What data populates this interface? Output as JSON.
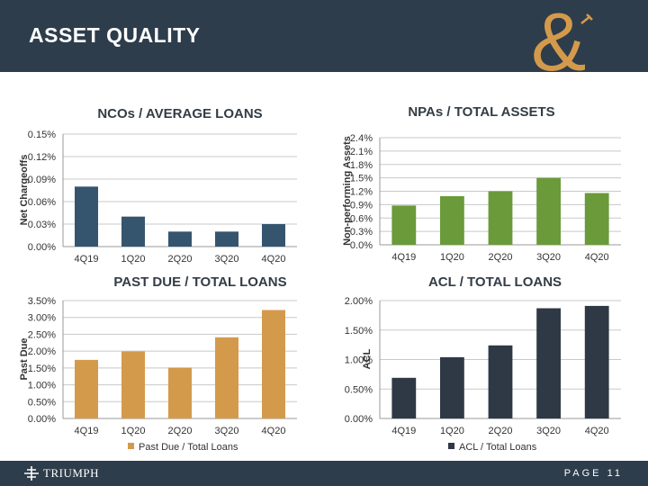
{
  "header": {
    "title": "ASSET QUALITY"
  },
  "footer": {
    "brand": "TRIUMPH",
    "page": "PAGE 11"
  },
  "colors": {
    "header_bg": "#2e3d4b",
    "accent_gold": "#d49a4b",
    "blue": "#35556f",
    "green": "#6a9a3a",
    "gold": "#d49a4b",
    "dark": "#2e3945"
  },
  "chart_data": [
    {
      "type": "bar",
      "title": "NCOs / AVERAGE LOANS",
      "ylabel": "Net Chargeoffs",
      "categories": [
        "4Q19",
        "1Q20",
        "2Q20",
        "3Q20",
        "4Q20"
      ],
      "values": [
        0.08,
        0.04,
        0.02,
        0.02,
        0.03
      ],
      "ylim": [
        0,
        0.15
      ],
      "yticks": [
        "0.00%",
        "0.03%",
        "0.06%",
        "0.09%",
        "0.12%",
        "0.15%"
      ],
      "unit": "%",
      "color": "#35556f",
      "grid": true
    },
    {
      "type": "bar",
      "title": "NPAs / TOTAL ASSETS",
      "ylabel": "Non-performing Assets",
      "categories": [
        "4Q19",
        "1Q20",
        "2Q20",
        "3Q20",
        "4Q20"
      ],
      "values": [
        0.88,
        1.09,
        1.2,
        1.5,
        1.16
      ],
      "ylim": [
        0,
        2.4
      ],
      "yticks": [
        "0.0%",
        "0.3%",
        "0.6%",
        "0.9%",
        "1.2%",
        "1.5%",
        "1.8%",
        "2.1%",
        "2.4%"
      ],
      "unit": "%",
      "color": "#6a9a3a",
      "grid": true
    },
    {
      "type": "bar",
      "title": "PAST DUE / TOTAL LOANS",
      "ylabel": "Past Due",
      "categories": [
        "4Q19",
        "1Q20",
        "2Q20",
        "3Q20",
        "4Q20"
      ],
      "values": [
        1.74,
        1.99,
        1.51,
        2.41,
        3.22
      ],
      "ylim": [
        0,
        3.5
      ],
      "yticks": [
        "0.00%",
        "0.50%",
        "1.00%",
        "1.50%",
        "2.00%",
        "2.50%",
        "3.00%",
        "3.50%"
      ],
      "unit": "%",
      "color": "#d49a4b",
      "grid": true,
      "legend": "Past Due / Total Loans"
    },
    {
      "type": "bar",
      "title": "ACL / TOTAL LOANS",
      "ylabel": "ACL",
      "categories": [
        "4Q19",
        "1Q20",
        "2Q20",
        "3Q20",
        "4Q20"
      ],
      "values": [
        0.69,
        1.04,
        1.24,
        1.87,
        1.91
      ],
      "ylim": [
        0,
        2.0
      ],
      "yticks": [
        "0.00%",
        "0.50%",
        "1.00%",
        "1.50%",
        "2.00%"
      ],
      "unit": "%",
      "color": "#2e3945",
      "grid": true,
      "legend": "ACL / Total Loans"
    }
  ]
}
